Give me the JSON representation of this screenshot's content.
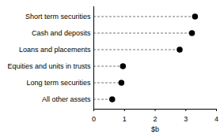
{
  "chart_data": {
    "type": "dot",
    "orientation": "horizontal",
    "categories": [
      "Short term securities",
      "Cash and deposits",
      "Loans and placements",
      "Equities and units in trusts",
      "Long term securities",
      "All other assets"
    ],
    "values": [
      3.3,
      3.2,
      2.8,
      0.95,
      0.9,
      0.6
    ],
    "color": "#000000",
    "marker": "circle",
    "line_style": "dashed",
    "xlabel": "$b",
    "xlim": [
      0,
      4
    ],
    "xticks": [
      0,
      1,
      2,
      3,
      4
    ],
    "grid": false
  }
}
